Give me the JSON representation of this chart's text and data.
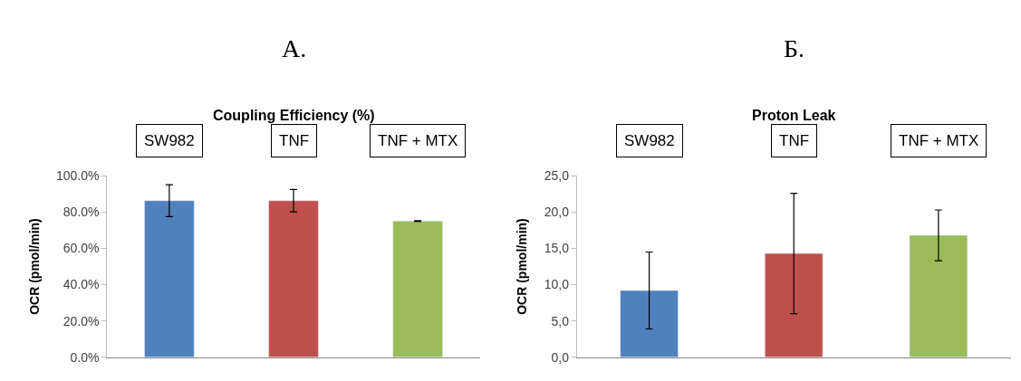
{
  "chart_data": [
    {
      "type": "bar",
      "title": "Coupling Efficiency (%)",
      "ylabel": "OCR (pmol/min)",
      "annotations": [
        "А.",
        "SW982",
        "TNF",
        "TNF + MTX"
      ],
      "categories": [
        null,
        null,
        null
      ],
      "values": [
        86.3,
        86.3,
        75.1
      ],
      "errors": [
        8.8,
        6.2,
        0.2
      ],
      "colors": [
        "#4f81bd",
        "#c0504d",
        "#9bbb59"
      ],
      "ylim": [
        0,
        100
      ],
      "yticks": [
        {
          "value": 0,
          "label": "0.0%"
        },
        {
          "value": 20,
          "label": "20.0%"
        },
        {
          "value": 40,
          "label": "40.0%"
        },
        {
          "value": 60,
          "label": "60.0%"
        },
        {
          "value": 80,
          "label": "80.0%"
        },
        {
          "value": 100,
          "label": "100.0%"
        }
      ],
      "tick_labels": "y",
      "grid": false
    },
    {
      "type": "bar",
      "title": "Proton Leak",
      "ylabel": "OCR (pmol/min)",
      "annotations": [
        "Б.",
        "SW982",
        "TNF",
        "TNF + MTX"
      ],
      "categories": [
        null,
        null,
        null
      ],
      "values": [
        9.2,
        14.3,
        16.8
      ],
      "errors": [
        5.3,
        8.3,
        3.5
      ],
      "colors": [
        "#4f81bd",
        "#c0504d",
        "#9bbb59"
      ],
      "ylim": [
        0,
        25
      ],
      "yticks": [
        {
          "value": 0,
          "label": "0,0"
        },
        {
          "value": 5,
          "label": "5,0"
        },
        {
          "value": 10,
          "label": "10,0"
        },
        {
          "value": 15,
          "label": "15,0"
        },
        {
          "value": 20,
          "label": "20,0"
        },
        {
          "value": 25,
          "label": "25,0"
        }
      ],
      "tick_labels": "y",
      "grid": false
    }
  ]
}
